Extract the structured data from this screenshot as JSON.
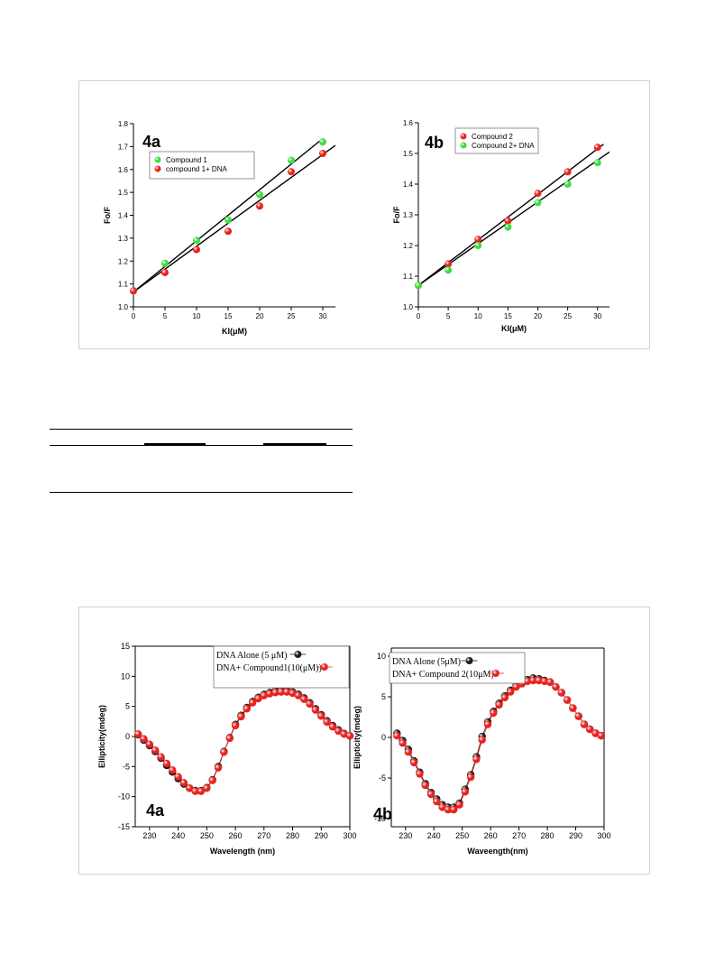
{
  "colors": {
    "green": "#3ddc3d",
    "red": "#e8231f",
    "black_marker": "#1a1a1a",
    "panel_border": "#c9d3dc"
  },
  "chart_data": [
    {
      "type": "scatter",
      "panel_label": "4a",
      "xlabel": "KI(μM)",
      "ylabel": "Fo/F",
      "xlim": [
        0,
        32
      ],
      "ylim": [
        1.0,
        1.8
      ],
      "xticks": [
        "0",
        "5",
        "10",
        "15",
        "20",
        "25",
        "30"
      ],
      "yticks": [
        "1.0",
        "1.1",
        "1.2",
        "1.3",
        "1.4",
        "1.5",
        "1.6",
        "1.7",
        "1.8"
      ],
      "legend_position": "top-left",
      "series": [
        {
          "name": "Compound 1",
          "color": "#3ddc3d",
          "x": [
            0,
            5,
            10,
            15,
            20,
            25,
            30
          ],
          "y": [
            1.07,
            1.19,
            1.29,
            1.38,
            1.49,
            1.64,
            1.72
          ],
          "fit": [
            [
              0,
              1.065
            ],
            [
              30,
              1.735
            ]
          ]
        },
        {
          "name": "compound 1+ DNA",
          "color": "#e8231f",
          "x": [
            0,
            5,
            10,
            15,
            20,
            25,
            30
          ],
          "y": [
            1.07,
            1.15,
            1.25,
            1.33,
            1.44,
            1.59,
            1.67
          ],
          "fit": [
            [
              0,
              1.065
            ],
            [
              32,
              1.705
            ]
          ]
        }
      ]
    },
    {
      "type": "scatter",
      "panel_label": "4b",
      "xlabel": "KI(μM)",
      "ylabel": "Fo/F",
      "xlim": [
        0,
        32
      ],
      "ylim": [
        1.0,
        1.6
      ],
      "xticks": [
        "0",
        "5",
        "10",
        "15",
        "20",
        "25",
        "30"
      ],
      "yticks": [
        "1.0",
        "1.1",
        "1.2",
        "1.3",
        "1.4",
        "1.5",
        "1.6"
      ],
      "legend_position": "top-left",
      "series": [
        {
          "name": "Compound 2",
          "color": "#e8231f",
          "x": [
            0,
            5,
            10,
            15,
            20,
            25,
            30
          ],
          "y": [
            1.07,
            1.14,
            1.22,
            1.28,
            1.37,
            1.44,
            1.52
          ],
          "fit": [
            [
              0,
              1.07
            ],
            [
              31,
              1.53
            ]
          ]
        },
        {
          "name": "Compound 2+ DNA",
          "color": "#3ddc3d",
          "x": [
            0,
            5,
            10,
            15,
            20,
            25,
            30
          ],
          "y": [
            1.07,
            1.12,
            1.2,
            1.26,
            1.34,
            1.4,
            1.47
          ],
          "fit": [
            [
              0,
              1.07
            ],
            [
              32,
              1.505
            ]
          ]
        }
      ]
    },
    {
      "type": "line",
      "panel_label": "4a",
      "xlabel": "Wavelength (nm)",
      "ylabel": "Ellipticity(mdeg)",
      "xlim": [
        225,
        300
      ],
      "ylim": [
        -15,
        15
      ],
      "xticks": [
        "230",
        "240",
        "250",
        "260",
        "270",
        "280",
        "290",
        "300"
      ],
      "yticks": [
        "-15",
        "-10",
        "-5",
        "0",
        "5",
        "10",
        "15"
      ],
      "legend_position": "top-right",
      "series": [
        {
          "name": "DNA Alone (5 μM)",
          "color": "#1a1a1a",
          "x": [
            226,
            228,
            230,
            232,
            234,
            236,
            238,
            240,
            242,
            244,
            246,
            248,
            250,
            252,
            254,
            256,
            258,
            260,
            262,
            264,
            266,
            268,
            270,
            272,
            274,
            276,
            278,
            280,
            282,
            284,
            286,
            288,
            290,
            292,
            294,
            296,
            298,
            300
          ],
          "y": [
            0.3,
            -0.6,
            -1.5,
            -2.5,
            -3.6,
            -4.8,
            -5.9,
            -7.0,
            -7.9,
            -8.6,
            -9.0,
            -9.0,
            -8.5,
            -7.2,
            -5.0,
            -2.5,
            -0.2,
            2.0,
            3.5,
            4.8,
            5.8,
            6.5,
            7.0,
            7.3,
            7.6,
            7.7,
            7.6,
            7.4,
            7.0,
            6.4,
            5.6,
            4.6,
            3.6,
            2.6,
            1.8,
            1.1,
            0.5,
            0.1
          ]
        },
        {
          "name": "DNA+ Compound1(10(μM))",
          "color": "#e8231f",
          "x": [
            226,
            228,
            230,
            232,
            234,
            236,
            238,
            240,
            242,
            244,
            246,
            248,
            250,
            252,
            254,
            256,
            258,
            260,
            262,
            264,
            266,
            268,
            270,
            272,
            274,
            276,
            278,
            280,
            282,
            284,
            286,
            288,
            290,
            292,
            294,
            296,
            298,
            300
          ],
          "y": [
            0.4,
            -0.4,
            -1.3,
            -2.3,
            -3.4,
            -4.5,
            -5.6,
            -6.7,
            -7.7,
            -8.6,
            -9.1,
            -9.1,
            -8.6,
            -7.3,
            -5.2,
            -2.6,
            -0.3,
            1.8,
            3.3,
            4.6,
            5.6,
            6.3,
            6.8,
            7.1,
            7.3,
            7.4,
            7.4,
            7.2,
            6.8,
            6.2,
            5.4,
            4.4,
            3.4,
            2.4,
            1.6,
            0.9,
            0.4,
            0.1
          ]
        }
      ]
    },
    {
      "type": "line",
      "panel_label": "4b",
      "xlabel": "Waveength(nm)",
      "ylabel": "Ellipticity(mdeg)",
      "xlim": [
        225,
        300
      ],
      "ylim": [
        -11,
        11
      ],
      "xticks": [
        "230",
        "240",
        "250",
        "260",
        "270",
        "280",
        "290",
        "300"
      ],
      "yticks": [
        "-10",
        "-5",
        "0",
        "5",
        "10"
      ],
      "legend_position": "top-left",
      "series": [
        {
          "name": "DNA Alone (5μM)",
          "color": "#1a1a1a",
          "x": [
            227,
            229,
            231,
            233,
            235,
            237,
            239,
            241,
            243,
            245,
            247,
            249,
            251,
            253,
            255,
            257,
            259,
            261,
            263,
            265,
            267,
            269,
            271,
            273,
            275,
            277,
            279,
            281,
            283,
            285,
            287,
            289,
            291,
            293,
            295,
            297,
            299
          ],
          "y": [
            0.5,
            -0.4,
            -1.5,
            -2.9,
            -4.3,
            -5.7,
            -6.8,
            -7.6,
            -8.3,
            -8.6,
            -8.6,
            -8.1,
            -6.4,
            -4.6,
            -2.4,
            0.1,
            1.9,
            3.2,
            4.2,
            5.1,
            5.8,
            6.4,
            6.9,
            7.1,
            7.3,
            7.2,
            7.0,
            6.8,
            6.2,
            5.5,
            4.6,
            3.6,
            2.6,
            1.6,
            1.0,
            0.5,
            0.2
          ]
        },
        {
          "name": "DNA+ Compound 2(10μM)",
          "color": "#e8231f",
          "x": [
            227,
            229,
            231,
            233,
            235,
            237,
            239,
            241,
            243,
            245,
            247,
            249,
            251,
            253,
            255,
            257,
            259,
            261,
            263,
            265,
            267,
            269,
            271,
            273,
            275,
            277,
            279,
            281,
            283,
            285,
            287,
            289,
            291,
            293,
            295,
            297,
            299
          ],
          "y": [
            0.2,
            -0.7,
            -1.8,
            -3.1,
            -4.5,
            -5.9,
            -7.0,
            -7.9,
            -8.6,
            -8.9,
            -8.9,
            -8.3,
            -6.7,
            -4.9,
            -2.7,
            -0.3,
            1.6,
            3.0,
            4.0,
            4.9,
            5.6,
            6.2,
            6.6,
            6.9,
            7.0,
            7.0,
            6.9,
            6.8,
            6.2,
            5.5,
            4.6,
            3.6,
            2.6,
            1.6,
            1.0,
            0.5,
            0.2
          ]
        }
      ]
    }
  ]
}
